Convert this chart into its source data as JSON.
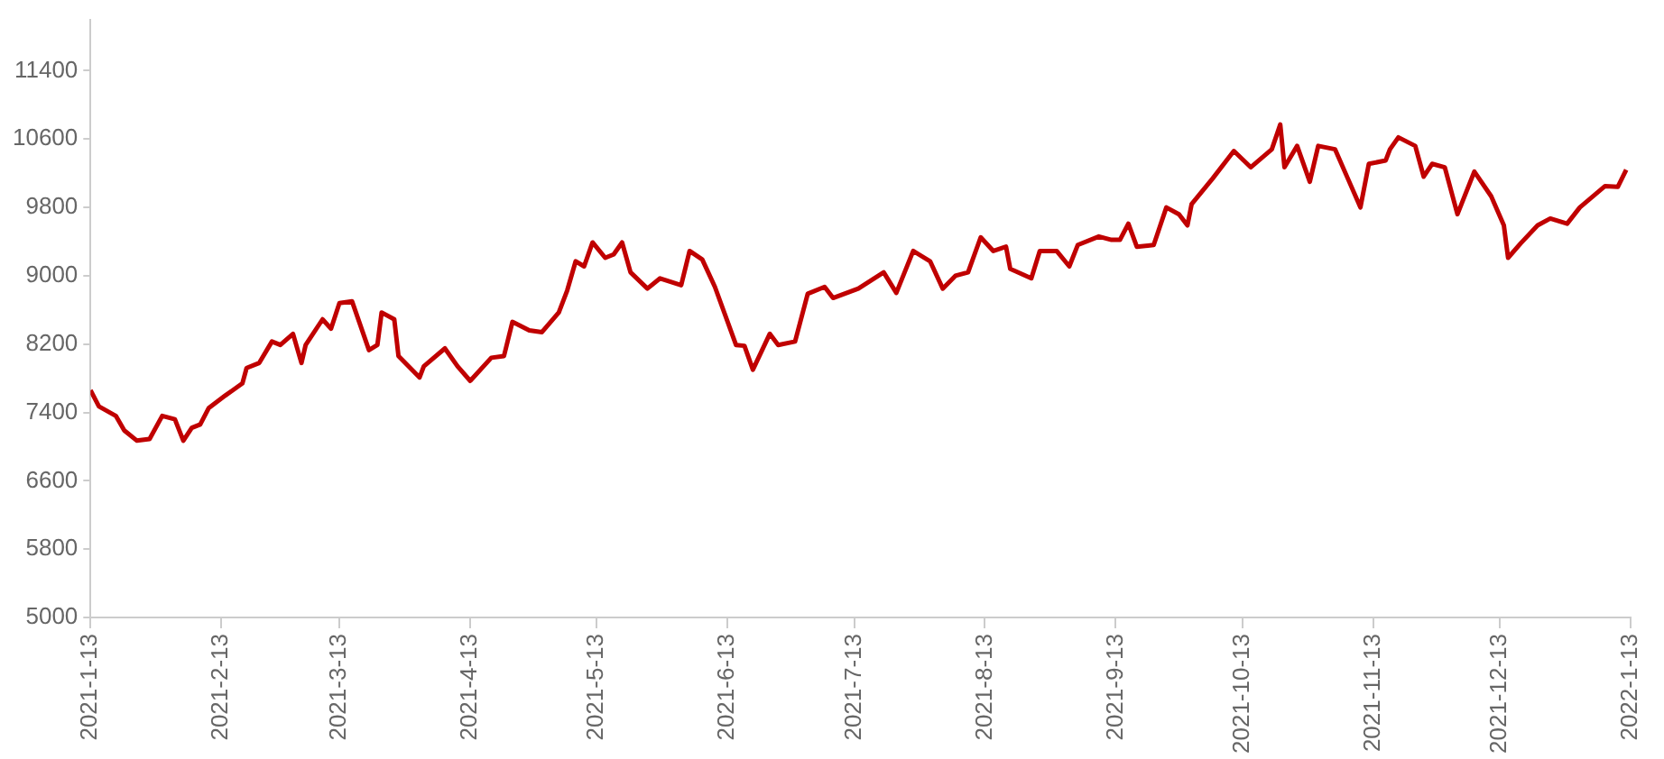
{
  "chart_data": {
    "type": "line",
    "x": [
      "2021-01-13",
      "2021-01-15",
      "2021-01-19",
      "2021-01-21",
      "2021-01-24",
      "2021-01-27",
      "2021-01-30",
      "2021-02-02",
      "2021-02-04",
      "2021-02-06",
      "2021-02-08",
      "2021-02-10",
      "2021-02-14",
      "2021-02-18",
      "2021-02-19",
      "2021-02-22",
      "2021-02-25",
      "2021-02-27",
      "2021-03-02",
      "2021-03-04",
      "2021-03-05",
      "2021-03-09",
      "2021-03-11",
      "2021-03-13",
      "2021-03-16",
      "2021-03-20",
      "2021-03-22",
      "2021-03-23",
      "2021-03-26",
      "2021-03-27",
      "2021-04-01",
      "2021-04-02",
      "2021-04-07",
      "2021-04-10",
      "2021-04-13",
      "2021-04-18",
      "2021-04-21",
      "2021-04-23",
      "2021-04-27",
      "2021-04-30",
      "2021-05-04",
      "2021-05-06",
      "2021-05-08",
      "2021-05-10",
      "2021-05-12",
      "2021-05-15",
      "2021-05-17",
      "2021-05-19",
      "2021-05-21",
      "2021-05-25",
      "2021-05-28",
      "2021-06-02",
      "2021-06-04",
      "2021-06-07",
      "2021-06-10",
      "2021-06-15",
      "2021-06-17",
      "2021-06-19",
      "2021-06-23",
      "2021-06-25",
      "2021-06-29",
      "2021-07-02",
      "2021-07-06",
      "2021-07-08",
      "2021-07-14",
      "2021-07-20",
      "2021-07-23",
      "2021-07-27",
      "2021-07-31",
      "2021-08-03",
      "2021-08-06",
      "2021-08-09",
      "2021-08-12",
      "2021-08-15",
      "2021-08-18",
      "2021-08-19",
      "2021-08-24",
      "2021-08-26",
      "2021-08-30",
      "2021-09-02",
      "2021-09-04",
      "2021-09-09",
      "2021-09-12",
      "2021-09-14",
      "2021-09-16",
      "2021-09-18",
      "2021-09-22",
      "2021-09-25",
      "2021-09-28",
      "2021-09-30",
      "2021-10-01",
      "2021-10-06",
      "2021-10-11",
      "2021-10-15",
      "2021-10-20",
      "2021-10-22",
      "2021-10-23",
      "2021-10-26",
      "2021-10-29",
      "2021-10-31",
      "2021-11-04",
      "2021-11-07",
      "2021-11-10",
      "2021-11-12",
      "2021-11-16",
      "2021-11-17",
      "2021-11-19",
      "2021-11-23",
      "2021-11-25",
      "2021-11-27",
      "2021-11-30",
      "2021-12-03",
      "2021-12-07",
      "2021-12-11",
      "2021-12-14",
      "2021-12-15",
      "2021-12-18",
      "2021-12-22",
      "2021-12-25",
      "2021-12-29",
      "2022-01-01",
      "2022-01-07",
      "2022-01-10",
      "2022-01-12"
    ],
    "series": [
      {
        "color": "#c00000",
        "values": [
          7660,
          7470,
          7360,
          7190,
          7070,
          7090,
          7360,
          7320,
          7070,
          7220,
          7260,
          7450,
          7600,
          7740,
          7920,
          7980,
          8230,
          8190,
          8320,
          7980,
          8190,
          8490,
          8380,
          8680,
          8700,
          8130,
          8190,
          8570,
          8490,
          8060,
          7810,
          7940,
          8150,
          7940,
          7770,
          8040,
          8060,
          8460,
          8360,
          8340,
          8570,
          8830,
          9170,
          9110,
          9390,
          9210,
          9250,
          9390,
          9040,
          8850,
          8970,
          8890,
          9290,
          9190,
          8870,
          8190,
          8180,
          7900,
          8320,
          8190,
          8230,
          8790,
          8870,
          8740,
          8850,
          9040,
          8800,
          9290,
          9170,
          8850,
          9000,
          9040,
          9450,
          9290,
          9340,
          9080,
          8970,
          9290,
          9290,
          9110,
          9360,
          9460,
          9420,
          9420,
          9610,
          9340,
          9360,
          9800,
          9720,
          9590,
          9840,
          10140,
          10460,
          10270,
          10480,
          10770,
          10270,
          10520,
          10100,
          10520,
          10480,
          10140,
          9800,
          10310,
          10350,
          10480,
          10620,
          10520,
          10160,
          10310,
          10270,
          9720,
          10220,
          9930,
          9590,
          9210,
          9380,
          9590,
          9670,
          9610,
          9800,
          10050,
          10040,
          10240
        ]
      }
    ],
    "xlim": [
      "2021-01-13",
      "2022-01-13"
    ],
    "xticks": [
      {
        "value": "2021-01-13",
        "label": "2021-1-13"
      },
      {
        "value": "2021-02-13",
        "label": "2021-2-13"
      },
      {
        "value": "2021-03-13",
        "label": "2021-3-13"
      },
      {
        "value": "2021-04-13",
        "label": "2021-4-13"
      },
      {
        "value": "2021-05-13",
        "label": "2021-5-13"
      },
      {
        "value": "2021-06-13",
        "label": "2021-6-13"
      },
      {
        "value": "2021-07-13",
        "label": "2021-7-13"
      },
      {
        "value": "2021-08-13",
        "label": "2021-8-13"
      },
      {
        "value": "2021-09-13",
        "label": "2021-9-13"
      },
      {
        "value": "2021-10-13",
        "label": "2021-10-13"
      },
      {
        "value": "2021-11-13",
        "label": "2021-11-13"
      },
      {
        "value": "2021-12-13",
        "label": "2021-12-13"
      },
      {
        "value": "2022-01-13",
        "label": "2022-1-13"
      }
    ],
    "ylim": [
      5000,
      12000
    ],
    "yticks": [
      5000,
      5800,
      6600,
      7400,
      8200,
      9000,
      9800,
      10600,
      11400
    ],
    "grid": false,
    "legend": false,
    "marker": "none",
    "line_style": "solid"
  }
}
